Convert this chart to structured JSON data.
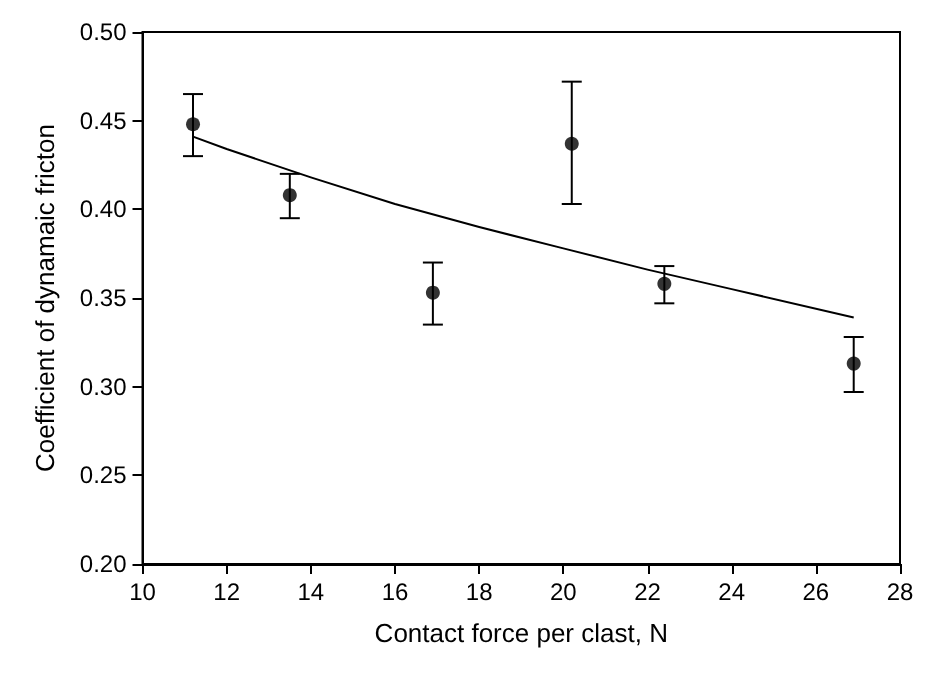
{
  "chart_data": {
    "type": "scatter",
    "xlabel": "Contact force per clast, N",
    "ylabel": "Coefficient of dynamaic fricton",
    "xlim": [
      10,
      28
    ],
    "xticks": [
      10,
      12,
      14,
      16,
      18,
      20,
      22,
      24,
      26,
      28
    ],
    "ylim": [
      0.2,
      0.5
    ],
    "yticks": [
      {
        "value": 0.2,
        "label": "0.20"
      },
      {
        "value": 0.25,
        "label": "0.25"
      },
      {
        "value": 0.3,
        "label": "0.30"
      },
      {
        "value": 0.35,
        "label": "0.35"
      },
      {
        "value": 0.4,
        "label": "0.40"
      },
      {
        "value": 0.45,
        "label": "0.45"
      },
      {
        "value": 0.5,
        "label": "0.50"
      }
    ],
    "grid": false,
    "series": [
      {
        "color": "#000000",
        "marker": "circle",
        "x": [
          11.2,
          13.5,
          16.9,
          20.2,
          22.4,
          26.9
        ],
        "values": [
          0.448,
          0.408,
          0.353,
          0.437,
          0.358,
          0.313
        ],
        "errors": [
          [
            0.43,
            0.465
          ],
          [
            0.395,
            0.42
          ],
          [
            0.335,
            0.37
          ],
          [
            0.403,
            0.472
          ],
          [
            0.347,
            0.368
          ],
          [
            0.297,
            0.328
          ]
        ]
      },
      {
        "type": "line",
        "color": "#000000",
        "marker": "none",
        "line_style": "solid",
        "x": [
          11.2,
          12,
          14,
          16,
          18,
          20,
          22,
          24,
          26.9
        ],
        "values": [
          0.441,
          0.434,
          0.418,
          0.403,
          0.39,
          0.378,
          0.366,
          0.355,
          0.339
        ]
      }
    ]
  }
}
